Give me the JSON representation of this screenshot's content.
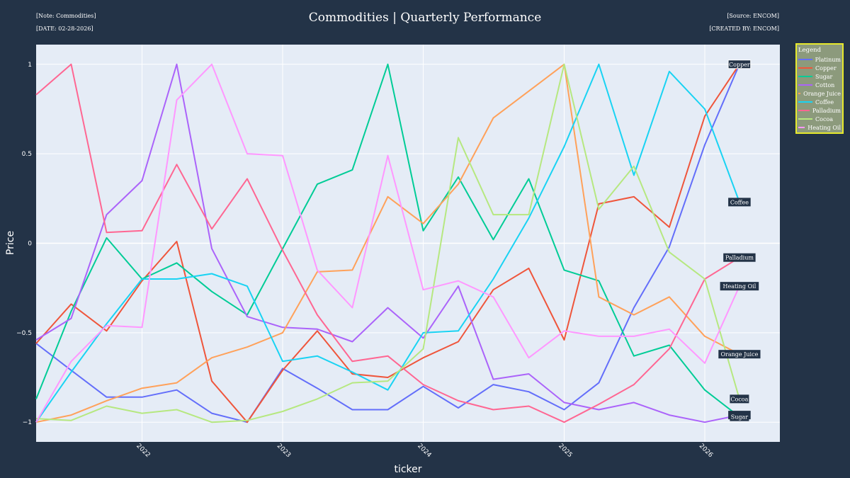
{
  "header": {
    "note": "[Note: Commodities]",
    "date": "[DATE: 02-28-2026]",
    "source": "[Source: ENCOM]",
    "created": "[CREATED BY: ENCOM]"
  },
  "chart_data": {
    "type": "line",
    "title": "Commodities | Quarterly Performance",
    "xlabel": "ticker",
    "ylabel": "Price",
    "x": [
      "2021-04-01",
      "2021-07-01",
      "2021-10-01",
      "2022-01-01",
      "2022-04-01",
      "2022-07-01",
      "2022-10-01",
      "2023-01-01",
      "2023-04-01",
      "2023-07-01",
      "2023-10-01",
      "2024-01-01",
      "2024-04-01",
      "2024-07-01",
      "2024-10-01",
      "2025-01-01",
      "2025-04-01",
      "2025-07-01",
      "2025-10-01",
      "2026-01-01",
      "2026-04-01"
    ],
    "x_ticks": [
      "2022",
      "2023",
      "2024",
      "2025",
      "2026"
    ],
    "xlim": [
      "2021-04-01",
      "2026-07-15"
    ],
    "ylim": [
      -1.11,
      1.11
    ],
    "y_ticks": [
      -1,
      -0.5,
      0,
      0.5,
      1
    ],
    "y_tick_labels": [
      "−1",
      "−0.5",
      "0",
      "0.5",
      "1"
    ],
    "grid": true,
    "legend_title": "Legend",
    "legend_position": "right",
    "series": [
      {
        "name": "Platinum",
        "color": "#636efa",
        "values": [
          -0.56,
          -0.71,
          -0.86,
          -0.86,
          -0.82,
          -0.95,
          -1.0,
          -0.7,
          -0.81,
          -0.93,
          -0.93,
          -0.8,
          -0.92,
          -0.79,
          -0.83,
          -0.93,
          -0.78,
          -0.36,
          -0.02,
          0.55,
          1.0
        ]
      },
      {
        "name": "Copper",
        "color": "#ef553b",
        "values": [
          -0.56,
          -0.34,
          -0.49,
          -0.21,
          0.01,
          -0.77,
          -1.0,
          -0.71,
          -0.49,
          -0.73,
          -0.75,
          -0.64,
          -0.55,
          -0.26,
          -0.14,
          -0.54,
          0.22,
          0.26,
          0.09,
          0.71,
          1.0
        ]
      },
      {
        "name": "Sugar",
        "color": "#00cc96",
        "values": [
          -0.87,
          -0.38,
          0.03,
          -0.2,
          -0.11,
          -0.27,
          -0.4,
          -0.03,
          0.33,
          0.41,
          1.0,
          0.07,
          0.37,
          0.02,
          0.36,
          -0.15,
          -0.21,
          -0.63,
          -0.57,
          -0.82,
          -0.97
        ]
      },
      {
        "name": "Cotton",
        "color": "#ab63fa",
        "values": [
          -0.54,
          -0.42,
          0.16,
          0.35,
          1.0,
          -0.03,
          -0.41,
          -0.47,
          -0.48,
          -0.55,
          -0.36,
          -0.53,
          -0.24,
          -0.76,
          -0.73,
          -0.89,
          -0.93,
          -0.89,
          -0.96,
          -1.0,
          -0.96
        ]
      },
      {
        "name": "Orange Juice",
        "color": "#ffa15a",
        "values": [
          -1.0,
          -0.96,
          -0.88,
          -0.81,
          -0.78,
          -0.64,
          -0.58,
          -0.5,
          -0.16,
          -0.15,
          0.26,
          0.11,
          0.33,
          0.7,
          0.85,
          1.0,
          -0.3,
          -0.4,
          -0.3,
          -0.52,
          -0.62
        ]
      },
      {
        "name": "Coffee",
        "color": "#19d3f3",
        "values": [
          -1.0,
          -0.72,
          -0.45,
          -0.2,
          -0.2,
          -0.17,
          -0.24,
          -0.66,
          -0.63,
          -0.72,
          -0.82,
          -0.5,
          -0.49,
          -0.2,
          0.14,
          0.54,
          1.0,
          0.38,
          0.96,
          0.75,
          0.23
        ]
      },
      {
        "name": "Palladium",
        "color": "#ff6692",
        "values": [
          0.83,
          1.0,
          0.06,
          0.07,
          0.44,
          0.08,
          0.36,
          -0.04,
          -0.4,
          -0.66,
          -0.63,
          -0.79,
          -0.88,
          -0.93,
          -0.91,
          -1.0,
          -0.9,
          -0.79,
          -0.59,
          -0.2,
          -0.08
        ]
      },
      {
        "name": "Cocoa",
        "color": "#b6e880",
        "values": [
          -0.98,
          -0.99,
          -0.91,
          -0.95,
          -0.93,
          -1.0,
          -0.99,
          -0.94,
          -0.87,
          -0.78,
          -0.77,
          -0.59,
          0.59,
          0.16,
          0.16,
          1.0,
          0.19,
          0.43,
          -0.05,
          -0.2,
          -0.87
        ]
      },
      {
        "name": "Heating Oil",
        "color": "#ff97ff",
        "values": [
          -1.0,
          -0.66,
          -0.46,
          -0.47,
          0.8,
          1.0,
          0.5,
          0.49,
          -0.15,
          -0.36,
          0.49,
          -0.26,
          -0.21,
          -0.3,
          -0.64,
          -0.49,
          -0.52,
          -0.52,
          -0.48,
          -0.67,
          -0.24
        ]
      }
    ],
    "end_labels": [
      {
        "series": "Copper",
        "text": "Copper",
        "boxed": true
      },
      {
        "series": "Coffee",
        "text": "Coffee"
      },
      {
        "series": "Palladium",
        "text": "Palladium"
      },
      {
        "series": "Heating Oil",
        "text": "Heating Oil"
      },
      {
        "series": "Orange Juice",
        "text": "Orange Juice"
      },
      {
        "series": "Cocoa",
        "text": "Cocoa"
      },
      {
        "series": "Cotton",
        "text": "Cotton"
      },
      {
        "series": "Sugar",
        "text": "Sugar"
      }
    ]
  }
}
